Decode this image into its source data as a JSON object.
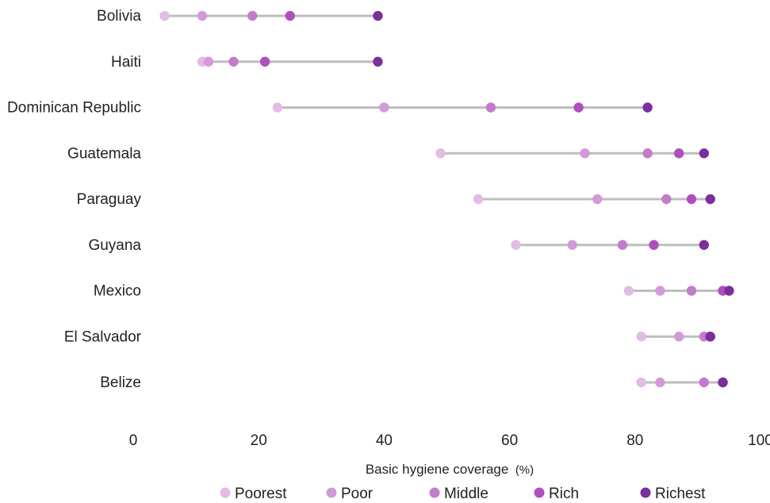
{
  "chart_data": {
    "type": "dumbbell",
    "xlabel": "Basic hygiene coverage",
    "xlabel_unit": "(%)",
    "xlim": [
      0,
      100
    ],
    "xticks": [
      0,
      20,
      40,
      60,
      80,
      100
    ],
    "grid": false,
    "legend_position": "bottom",
    "categories": [
      "Bolivia",
      "Haiti",
      "Dominican Republic",
      "Guatemala",
      "Paraguay",
      "Guyana",
      "Mexico",
      "El Salvador",
      "Belize"
    ],
    "series": [
      {
        "name": "Poorest",
        "color": "#e2bbe6",
        "values": [
          5,
          11,
          23,
          49,
          55,
          61,
          79,
          81,
          81
        ]
      },
      {
        "name": "Poor",
        "color": "#d29ad8",
        "values": [
          11,
          12,
          40,
          72,
          74,
          70,
          84,
          87,
          84
        ]
      },
      {
        "name": "Middle",
        "color": "#c27ccb",
        "values": [
          19,
          16,
          57,
          82,
          85,
          78,
          89,
          91,
          91
        ]
      },
      {
        "name": "Rich",
        "color": "#ae4fbc",
        "values": [
          25,
          21,
          71,
          87,
          89,
          83,
          94,
          92,
          94
        ]
      },
      {
        "name": "Richest",
        "color": "#7a2f9c",
        "values": [
          39,
          39,
          82,
          91,
          92,
          91,
          95,
          92,
          94
        ]
      }
    ]
  }
}
